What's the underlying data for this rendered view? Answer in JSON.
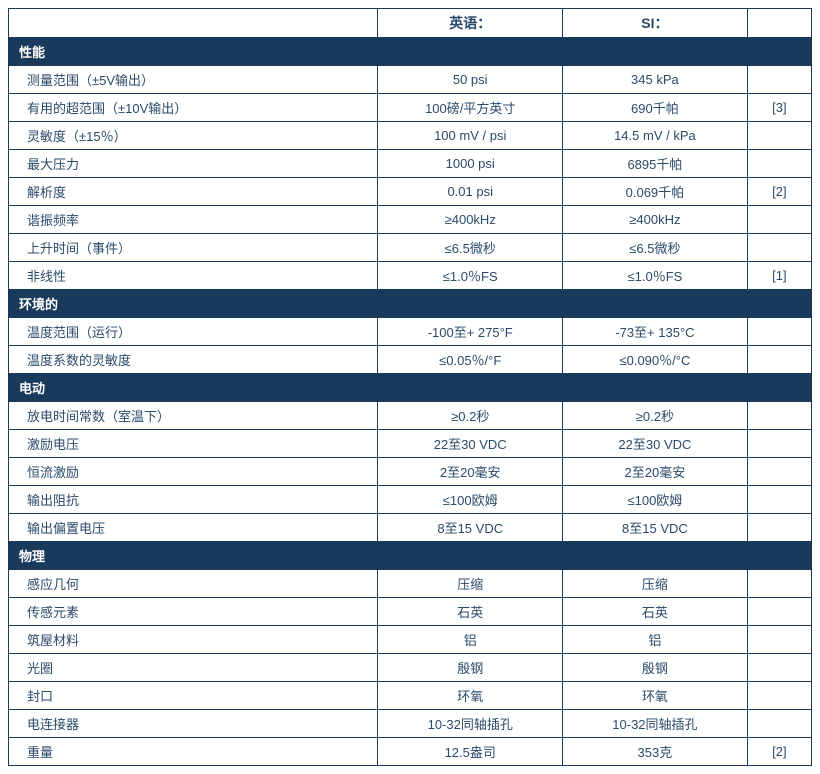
{
  "headers": {
    "label": "",
    "english": "英语：",
    "si": "SI：",
    "note": ""
  },
  "sections": [
    {
      "title": "性能",
      "rows": [
        {
          "label": "测量范围（±5V输出）",
          "en": "50 psi",
          "si": "345 kPa",
          "note": ""
        },
        {
          "label": "有用的超范围（±10V输出）",
          "en": "100磅/平方英寸",
          "si": "690千帕",
          "note": "[3]"
        },
        {
          "label": "灵敏度（±15％）",
          "en": "100 mV / psi",
          "si": "14.5 mV / kPa",
          "note": ""
        },
        {
          "label": "最大压力",
          "en": "1000 psi",
          "si": "6895千帕",
          "note": ""
        },
        {
          "label": "解析度",
          "en": "0.01 psi",
          "si": "0.069千帕",
          "note": "[2]"
        },
        {
          "label": "谐振频率",
          "en": "≥400kHz",
          "si": "≥400kHz",
          "note": ""
        },
        {
          "label": "上升时间（事件）",
          "en": "≤6.5微秒",
          "si": "≤6.5微秒",
          "note": ""
        },
        {
          "label": "非线性",
          "en": "≤1.0％FS",
          "si": "≤1.0％FS",
          "note": "[1]"
        }
      ]
    },
    {
      "title": "环境的",
      "rows": [
        {
          "label": "温度范围（运行）",
          "en": "-100至+ 275°F",
          "si": "-73至+ 135°C",
          "note": ""
        },
        {
          "label": "温度系数的灵敏度",
          "en": "≤0.05％/°F",
          "si": "≤0.090％/°C",
          "note": ""
        }
      ]
    },
    {
      "title": "电动",
      "rows": [
        {
          "label": "放电时间常数（室温下）",
          "en": "≥0.2秒",
          "si": "≥0.2秒",
          "note": ""
        },
        {
          "label": "激励电压",
          "en": "22至30 VDC",
          "si": "22至30 VDC",
          "note": ""
        },
        {
          "label": "恒流激励",
          "en": "2至20毫安",
          "si": "2至20毫安",
          "note": ""
        },
        {
          "label": "输出阻抗",
          "en": "≤100欧姆",
          "si": "≤100欧姆",
          "note": ""
        },
        {
          "label": "输出偏置电压",
          "en": "8至15 VDC",
          "si": "8至15 VDC",
          "note": ""
        }
      ]
    },
    {
      "title": "物理",
      "rows": [
        {
          "label": "感应几何",
          "en": "压缩",
          "si": "压缩",
          "note": ""
        },
        {
          "label": "传感元素",
          "en": "石英",
          "si": "石英",
          "note": ""
        },
        {
          "label": "筑屋材料",
          "en": "铝",
          "si": "铝",
          "note": ""
        },
        {
          "label": "光圈",
          "en": "殷钢",
          "si": "殷钢",
          "note": ""
        },
        {
          "label": "封口",
          "en": "环氧",
          "si": "环氧",
          "note": ""
        },
        {
          "label": "电连接器",
          "en": "10-32同轴插孔",
          "si": "10-32同轴插孔",
          "note": ""
        },
        {
          "label": "重量",
          "en": "12.5盎司",
          "si": "353克",
          "note": "[2]"
        }
      ]
    }
  ]
}
